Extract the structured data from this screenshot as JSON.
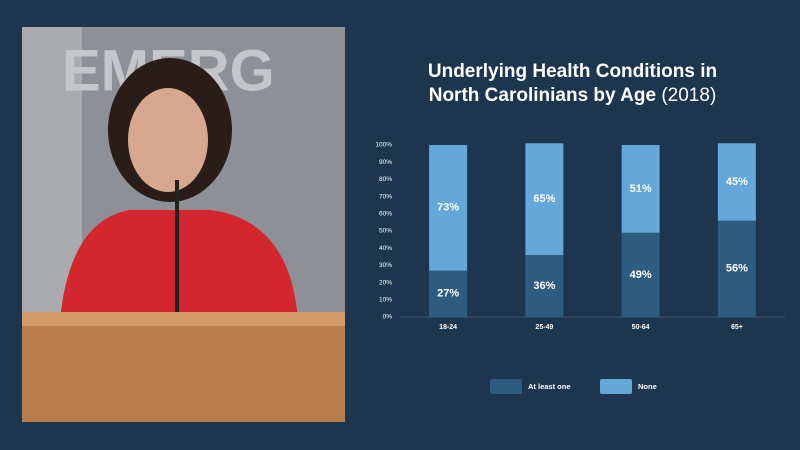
{
  "video": {
    "sign_text": "EMERG"
  },
  "chart_data": {
    "type": "stacked_bar",
    "title": "Underlying Health Conditions in North Carolinians by Age",
    "subtitle": "(2018)",
    "categories": [
      "18-24",
      "25-49",
      "50-64",
      "65+"
    ],
    "series": [
      {
        "name": "At least one",
        "color": "#2e5b80",
        "values": [
          27,
          36,
          49,
          56
        ],
        "value_labels": [
          "27%",
          "36%",
          "49%",
          "56%"
        ]
      },
      {
        "name": "None",
        "color": "#63a8d8",
        "values": [
          73,
          65,
          51,
          45
        ],
        "value_labels": [
          "73%",
          "65%",
          "51%",
          "45%"
        ]
      }
    ],
    "ylim": [
      0,
      100
    ],
    "yticks": [
      {
        "value": 0,
        "label": "0%"
      },
      {
        "value": 10,
        "label": "10%"
      },
      {
        "value": 20,
        "label": "20%"
      },
      {
        "value": 30,
        "label": "30%"
      },
      {
        "value": 40,
        "label": "40%"
      },
      {
        "value": 50,
        "label": "50%"
      },
      {
        "value": 60,
        "label": "60%"
      },
      {
        "value": 70,
        "label": "70%"
      },
      {
        "value": 80,
        "label": "80%"
      },
      {
        "value": 90,
        "label": "90%"
      },
      {
        "value": 100,
        "label": "100%"
      }
    ],
    "legend": "bottom"
  }
}
